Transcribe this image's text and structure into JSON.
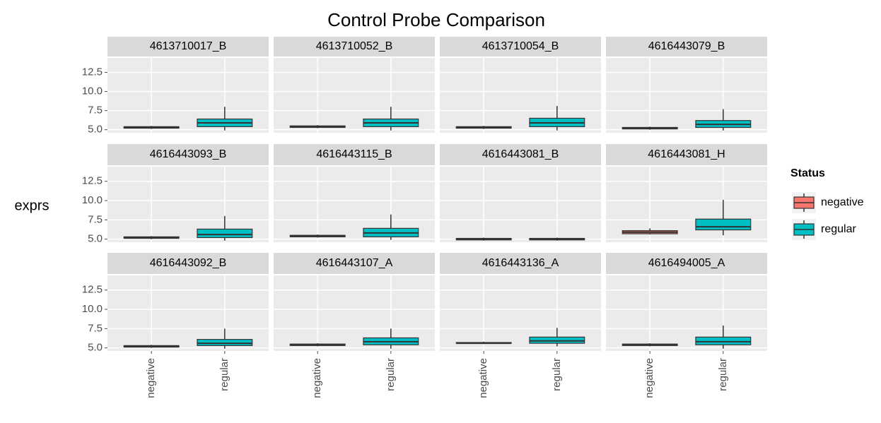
{
  "title": "Control Probe Comparison",
  "y_label": "exprs",
  "legend_title": "Status",
  "categories": [
    "negative",
    "regular"
  ],
  "colors": [
    "#f8766d",
    "#00bfc4"
  ],
  "ylim": [
    4.6,
    14.4
  ],
  "yticks": [
    5.0,
    7.5,
    10.0,
    12.5
  ],
  "grid": true,
  "chart_data": [
    {
      "type": "box",
      "title": "4613710017_B",
      "values": [
        [
          5.1,
          5.2,
          5.3,
          5.4,
          5.5
        ],
        [
          4.9,
          5.4,
          5.9,
          6.4,
          8.0
        ]
      ]
    },
    {
      "type": "box",
      "title": "4613710052_B",
      "values": [
        [
          5.2,
          5.3,
          5.4,
          5.5,
          5.6
        ],
        [
          4.9,
          5.4,
          5.9,
          6.4,
          8.0
        ]
      ]
    },
    {
      "type": "box",
      "title": "4613710054_B",
      "values": [
        [
          5.1,
          5.2,
          5.3,
          5.4,
          5.5
        ],
        [
          4.9,
          5.4,
          5.9,
          6.5,
          8.1
        ]
      ]
    },
    {
      "type": "box",
      "title": "4616443079_B",
      "values": [
        [
          5.0,
          5.1,
          5.2,
          5.3,
          5.4
        ],
        [
          4.9,
          5.3,
          5.7,
          6.2,
          7.7
        ]
      ]
    },
    {
      "type": "box",
      "title": "4616443093_B",
      "values": [
        [
          5.0,
          5.1,
          5.2,
          5.3,
          5.4
        ],
        [
          4.8,
          5.2,
          5.6,
          6.3,
          8.0
        ]
      ]
    },
    {
      "type": "box",
      "title": "4616443115_B",
      "values": [
        [
          5.2,
          5.3,
          5.4,
          5.5,
          5.6
        ],
        [
          4.9,
          5.3,
          5.8,
          6.4,
          8.2
        ]
      ]
    },
    {
      "type": "box",
      "title": "4616443081_B",
      "values": [
        [
          4.8,
          4.9,
          5.0,
          5.1,
          5.2
        ],
        [
          4.8,
          4.9,
          5.0,
          5.1,
          5.2
        ]
      ]
    },
    {
      "type": "box",
      "title": "4616443081_H",
      "values": [
        [
          5.6,
          5.7,
          5.9,
          6.1,
          6.4
        ],
        [
          5.5,
          6.2,
          6.6,
          7.6,
          10.1
        ]
      ]
    },
    {
      "type": "box",
      "title": "4616443092_B",
      "values": [
        [
          5.0,
          5.1,
          5.2,
          5.3,
          5.4
        ],
        [
          4.9,
          5.3,
          5.6,
          6.1,
          7.5
        ]
      ]
    },
    {
      "type": "box",
      "title": "4616443107_A",
      "values": [
        [
          5.2,
          5.3,
          5.4,
          5.5,
          5.6
        ],
        [
          4.9,
          5.4,
          5.8,
          6.3,
          7.5
        ]
      ]
    },
    {
      "type": "box",
      "title": "4616443136_A",
      "values": [
        [
          5.5,
          5.6,
          5.6,
          5.7,
          5.8
        ],
        [
          5.2,
          5.6,
          5.9,
          6.4,
          7.6
        ]
      ]
    },
    {
      "type": "box",
      "title": "4616494005_A",
      "values": [
        [
          5.2,
          5.3,
          5.4,
          5.5,
          5.6
        ],
        [
          4.9,
          5.4,
          5.8,
          6.4,
          7.9
        ]
      ]
    }
  ]
}
